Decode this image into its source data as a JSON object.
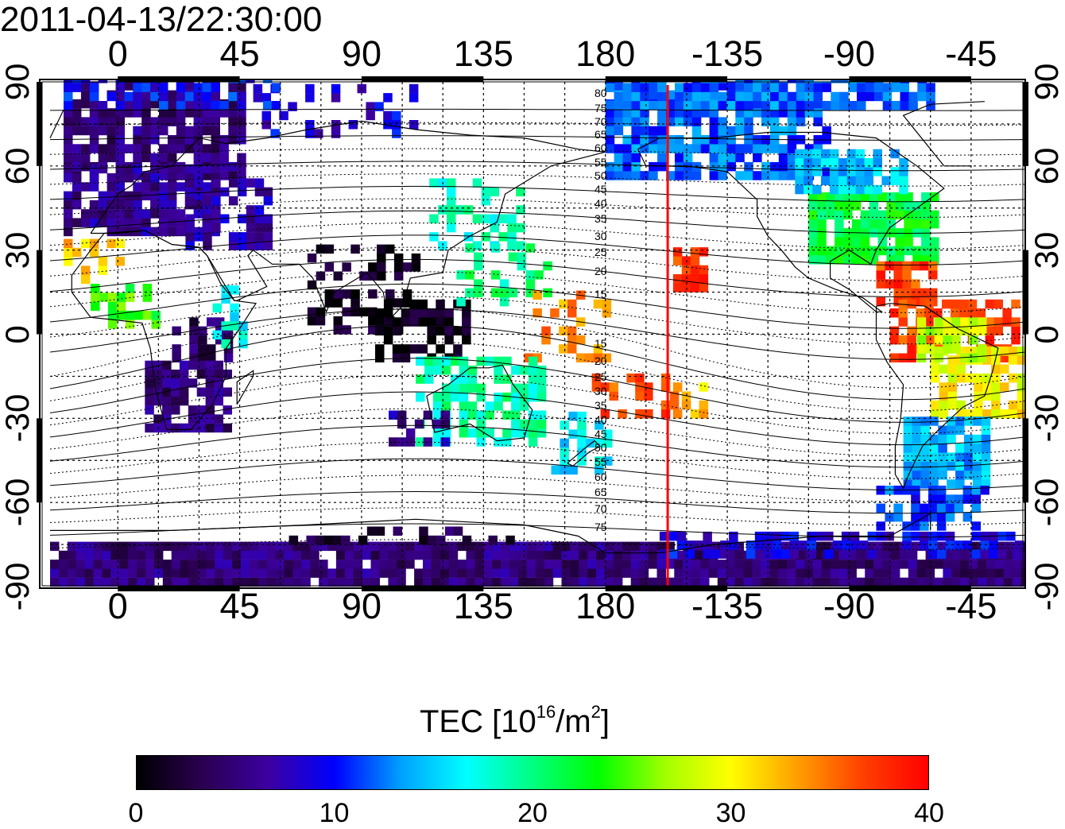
{
  "timestamp": "2011-04-13/22:30:00",
  "map": {
    "lon_ticks_top": [
      "0",
      "45",
      "90",
      "135",
      "180",
      "-135",
      "-90",
      "-45"
    ],
    "lon_ticks_bottom": [
      "0",
      "45",
      "90",
      "135",
      "180",
      "-135",
      "-90",
      "-45"
    ],
    "lat_ticks_left": [
      "90",
      "60",
      "30",
      "0",
      "-30",
      "-60",
      "-90"
    ],
    "lat_ticks_right": [
      "90",
      "60",
      "30",
      "0",
      "-30",
      "-60",
      "-90"
    ],
    "lon_range": [
      -25,
      335
    ],
    "lat_range": [
      -90,
      90
    ],
    "marker_longitude": -157,
    "marker_color": "#ff0000",
    "magnetic_latitude_labels": [
      "80",
      "75",
      "70",
      "65",
      "60",
      "55",
      "50",
      "45",
      "40",
      "35",
      "30",
      "25",
      "20",
      "15",
      "15",
      "20",
      "25",
      "30",
      "35",
      "40",
      "45",
      "50",
      "55",
      "60",
      "65",
      "70",
      "75"
    ]
  },
  "colorbar": {
    "title_prefix": "TEC  [10",
    "title_exp": "16",
    "title_suffix": "/m",
    "title_exp2": "2",
    "title_end": "]",
    "ticks": [
      "0",
      "10",
      "20",
      "30",
      "40"
    ],
    "range": [
      0,
      40
    ],
    "colors": [
      "#000000",
      "#2a0050",
      "#3c00a0",
      "#0000ff",
      "#00a0ff",
      "#00ffff",
      "#00ff80",
      "#00ff00",
      "#a0ff00",
      "#ffff00",
      "#ffa000",
      "#ff4000",
      "#ff0000"
    ]
  }
}
